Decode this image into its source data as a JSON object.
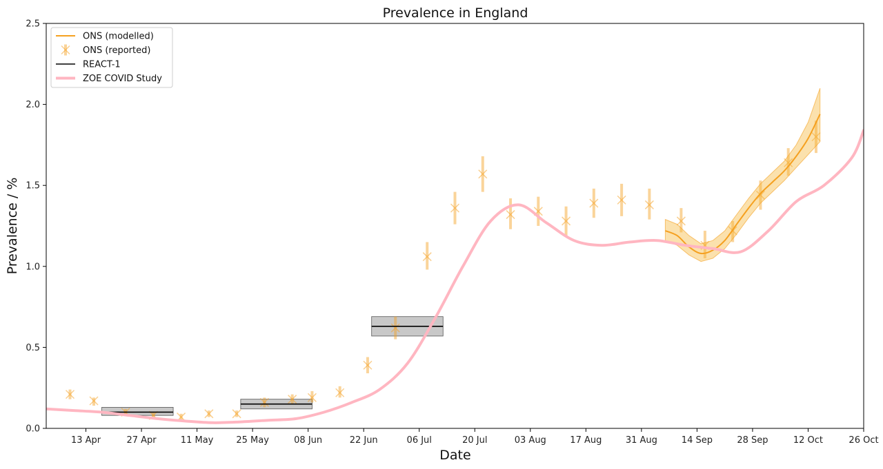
{
  "chart_data": {
    "type": "line",
    "title": "Prevalence in England",
    "xlabel": "Date",
    "ylabel": "Prevalence / %",
    "ylim": [
      0,
      2.5
    ],
    "xlim": [
      "2020-04-03",
      "2020-10-26"
    ],
    "grid": false,
    "legend_position": "top-left",
    "x_ticks": [
      {
        "date": "2020-04-13",
        "label": "13 Apr"
      },
      {
        "date": "2020-04-27",
        "label": "27 Apr"
      },
      {
        "date": "2020-05-11",
        "label": "11 May"
      },
      {
        "date": "2020-05-25",
        "label": "25 May"
      },
      {
        "date": "2020-06-08",
        "label": "08 Jun"
      },
      {
        "date": "2020-06-22",
        "label": "22 Jun"
      },
      {
        "date": "2020-07-06",
        "label": "06 Jul"
      },
      {
        "date": "2020-07-20",
        "label": "20 Jul"
      },
      {
        "date": "2020-08-03",
        "label": "03 Aug"
      },
      {
        "date": "2020-08-17",
        "label": "17 Aug"
      },
      {
        "date": "2020-08-31",
        "label": "31 Aug"
      },
      {
        "date": "2020-09-14",
        "label": "14 Sep"
      },
      {
        "date": "2020-09-28",
        "label": "28 Sep"
      },
      {
        "date": "2020-10-12",
        "label": "12 Oct"
      },
      {
        "date": "2020-10-26",
        "label": "26 Oct"
      }
    ],
    "y_ticks": [
      "0.0",
      "0.5",
      "1.0",
      "1.5",
      "2.0",
      "2.5"
    ],
    "series": [
      {
        "name": "ONS (modelled)",
        "kind": "line_with_band",
        "color": "#f5a01f",
        "band_color": "#f5b531",
        "points": [
          {
            "x": "2020-09-06",
            "y": 1.22,
            "lo": 1.16,
            "hi": 1.29
          },
          {
            "x": "2020-09-09",
            "y": 1.19,
            "lo": 1.13,
            "hi": 1.26
          },
          {
            "x": "2020-09-12",
            "y": 1.12,
            "lo": 1.07,
            "hi": 1.19
          },
          {
            "x": "2020-09-15",
            "y": 1.08,
            "lo": 1.03,
            "hi": 1.14
          },
          {
            "x": "2020-09-18",
            "y": 1.1,
            "lo": 1.05,
            "hi": 1.16
          },
          {
            "x": "2020-09-21",
            "y": 1.16,
            "lo": 1.11,
            "hi": 1.22
          },
          {
            "x": "2020-09-24",
            "y": 1.26,
            "lo": 1.2,
            "hi": 1.32
          },
          {
            "x": "2020-09-27",
            "y": 1.36,
            "lo": 1.3,
            "hi": 1.42
          },
          {
            "x": "2020-09-30",
            "y": 1.45,
            "lo": 1.39,
            "hi": 1.51
          },
          {
            "x": "2020-10-03",
            "y": 1.52,
            "lo": 1.46,
            "hi": 1.58
          },
          {
            "x": "2020-10-06",
            "y": 1.59,
            "lo": 1.53,
            "hi": 1.65
          },
          {
            "x": "2020-10-09",
            "y": 1.68,
            "lo": 1.61,
            "hi": 1.75
          },
          {
            "x": "2020-10-12",
            "y": 1.79,
            "lo": 1.69,
            "hi": 1.89
          },
          {
            "x": "2020-10-15",
            "y": 1.94,
            "lo": 1.77,
            "hi": 2.1
          }
        ]
      },
      {
        "name": "ONS (reported)",
        "kind": "errorbar_points",
        "color": "#f5a01f",
        "points": [
          {
            "x": "2020-04-09",
            "y": 0.21,
            "lo": 0.18,
            "hi": 0.24
          },
          {
            "x": "2020-04-15",
            "y": 0.17,
            "lo": 0.14,
            "hi": 0.19
          },
          {
            "x": "2020-04-23",
            "y": 0.1,
            "lo": 0.08,
            "hi": 0.12
          },
          {
            "x": "2020-04-30",
            "y": 0.08,
            "lo": 0.06,
            "hi": 0.1
          },
          {
            "x": "2020-05-07",
            "y": 0.07,
            "lo": 0.05,
            "hi": 0.09
          },
          {
            "x": "2020-05-14",
            "y": 0.09,
            "lo": 0.07,
            "hi": 0.11
          },
          {
            "x": "2020-05-21",
            "y": 0.09,
            "lo": 0.07,
            "hi": 0.11
          },
          {
            "x": "2020-05-28",
            "y": 0.16,
            "lo": 0.13,
            "hi": 0.19
          },
          {
            "x": "2020-06-04",
            "y": 0.18,
            "lo": 0.15,
            "hi": 0.21
          },
          {
            "x": "2020-06-09",
            "y": 0.19,
            "lo": 0.16,
            "hi": 0.23
          },
          {
            "x": "2020-06-16",
            "y": 0.22,
            "lo": 0.19,
            "hi": 0.26
          },
          {
            "x": "2020-06-23",
            "y": 0.39,
            "lo": 0.34,
            "hi": 0.44
          },
          {
            "x": "2020-06-30",
            "y": 0.62,
            "lo": 0.55,
            "hi": 0.69
          },
          {
            "x": "2020-07-08",
            "y": 1.06,
            "lo": 0.98,
            "hi": 1.15
          },
          {
            "x": "2020-07-15",
            "y": 1.36,
            "lo": 1.26,
            "hi": 1.46
          },
          {
            "x": "2020-07-22",
            "y": 1.57,
            "lo": 1.46,
            "hi": 1.68
          },
          {
            "x": "2020-07-29",
            "y": 1.32,
            "lo": 1.23,
            "hi": 1.42
          },
          {
            "x": "2020-08-05",
            "y": 1.34,
            "lo": 1.25,
            "hi": 1.43
          },
          {
            "x": "2020-08-12",
            "y": 1.28,
            "lo": 1.19,
            "hi": 1.37
          },
          {
            "x": "2020-08-19",
            "y": 1.39,
            "lo": 1.3,
            "hi": 1.48
          },
          {
            "x": "2020-08-26",
            "y": 1.41,
            "lo": 1.31,
            "hi": 1.51
          },
          {
            "x": "2020-09-02",
            "y": 1.38,
            "lo": 1.29,
            "hi": 1.48
          },
          {
            "x": "2020-09-10",
            "y": 1.28,
            "lo": 1.21,
            "hi": 1.36
          },
          {
            "x": "2020-09-16",
            "y": 1.13,
            "lo": 1.05,
            "hi": 1.22
          },
          {
            "x": "2020-09-23",
            "y": 1.22,
            "lo": 1.15,
            "hi": 1.28
          },
          {
            "x": "2020-09-30",
            "y": 1.44,
            "lo": 1.35,
            "hi": 1.53
          },
          {
            "x": "2020-10-07",
            "y": 1.64,
            "lo": 1.56,
            "hi": 1.73
          },
          {
            "x": "2020-10-14",
            "y": 1.8,
            "lo": 1.7,
            "hi": 1.9
          }
        ]
      },
      {
        "name": "REACT-1",
        "kind": "interval_boxes",
        "color": "#000000",
        "box_color": "#b0b0b0",
        "boxes": [
          {
            "x_start": "2020-04-17",
            "x_end": "2020-05-05",
            "y": 0.1,
            "lo": 0.08,
            "hi": 0.13
          },
          {
            "x_start": "2020-05-22",
            "x_end": "2020-06-09",
            "y": 0.15,
            "lo": 0.12,
            "hi": 0.18
          },
          {
            "x_start": "2020-06-24",
            "x_end": "2020-07-12",
            "y": 0.63,
            "lo": 0.57,
            "hi": 0.69
          }
        ]
      },
      {
        "name": "ZOE COVID Study",
        "kind": "line",
        "color": "#ffb6c1",
        "points": [
          {
            "x": "2020-04-03",
            "y": 0.12
          },
          {
            "x": "2020-04-10",
            "y": 0.11
          },
          {
            "x": "2020-04-17",
            "y": 0.1
          },
          {
            "x": "2020-04-24",
            "y": 0.08
          },
          {
            "x": "2020-05-01",
            "y": 0.06
          },
          {
            "x": "2020-05-08",
            "y": 0.045
          },
          {
            "x": "2020-05-15",
            "y": 0.035
          },
          {
            "x": "2020-05-22",
            "y": 0.04
          },
          {
            "x": "2020-05-29",
            "y": 0.05
          },
          {
            "x": "2020-06-05",
            "y": 0.06
          },
          {
            "x": "2020-06-12",
            "y": 0.1
          },
          {
            "x": "2020-06-19",
            "y": 0.16
          },
          {
            "x": "2020-06-26",
            "y": 0.24
          },
          {
            "x": "2020-07-03",
            "y": 0.4
          },
          {
            "x": "2020-07-10",
            "y": 0.68
          },
          {
            "x": "2020-07-17",
            "y": 1.0
          },
          {
            "x": "2020-07-24",
            "y": 1.28
          },
          {
            "x": "2020-07-31",
            "y": 1.38
          },
          {
            "x": "2020-08-07",
            "y": 1.27
          },
          {
            "x": "2020-08-14",
            "y": 1.16
          },
          {
            "x": "2020-08-21",
            "y": 1.13
          },
          {
            "x": "2020-08-28",
            "y": 1.15
          },
          {
            "x": "2020-09-04",
            "y": 1.16
          },
          {
            "x": "2020-09-11",
            "y": 1.13
          },
          {
            "x": "2020-09-18",
            "y": 1.11
          },
          {
            "x": "2020-09-25",
            "y": 1.09
          },
          {
            "x": "2020-10-02",
            "y": 1.22
          },
          {
            "x": "2020-10-09",
            "y": 1.4
          },
          {
            "x": "2020-10-16",
            "y": 1.5
          },
          {
            "x": "2020-10-23",
            "y": 1.67
          },
          {
            "x": "2020-10-26",
            "y": 1.84
          }
        ]
      }
    ]
  }
}
